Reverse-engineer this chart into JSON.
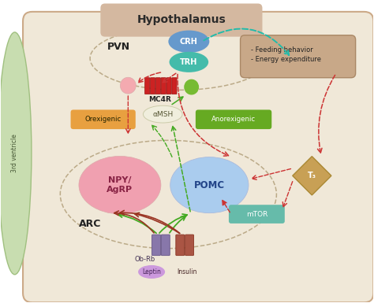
{
  "bg_color": "#f0e8d8",
  "title": "Hypothalamus",
  "title_bg": "#d4b8a0",
  "third_ventricle_color": "#c8ddb0",
  "third_ventricle_edge": "#a0c080",
  "third_ventricle_text": "3rd ventricle",
  "pvn_label": "PVN",
  "arc_label": "ARC",
  "crh_color": "#6699cc",
  "trh_color": "#44bbaa",
  "crh_label": "CRH",
  "trh_label": "TRH",
  "mc4r_color": "#cc2222",
  "mc4r_label": "MC4R",
  "npy_color": "#f0a0b0",
  "npy_label": "NPY/\nAgRP",
  "npy_text_color": "#882244",
  "pomc_color": "#aaccee",
  "pomc_label": "POMC",
  "pomc_text_color": "#224488",
  "alphamsh_label": "αMSH",
  "alphamsh_color": "#f0eedd",
  "orexigenic_label": "Orexigenic",
  "orexigenic_bg": "#e8a040",
  "anorexigenic_label": "Anorexigenic",
  "anorexigenic_bg": "#66aa22",
  "t3_color": "#c8a055",
  "t3_label": "T₃",
  "mtor_color": "#66bbaa",
  "mtor_label": "mTOR",
  "leptin_color": "#cc99dd",
  "leptin_label": "Leptin",
  "insulin_color": "#aa5544",
  "insulin_label": "Insulin",
  "obrb_label": "Ob-Rb",
  "obrb_color": "#8877aa",
  "feeding_bg": "#c8a888",
  "feeding_edge": "#aa8866",
  "feeding_text": "- Feeding behavior\n- Energy expenditure",
  "green_arrow": "#44aa22",
  "red_arrow": "#cc3333",
  "teal_arrow": "#22bbaa",
  "main_edge": "#ccaa88"
}
